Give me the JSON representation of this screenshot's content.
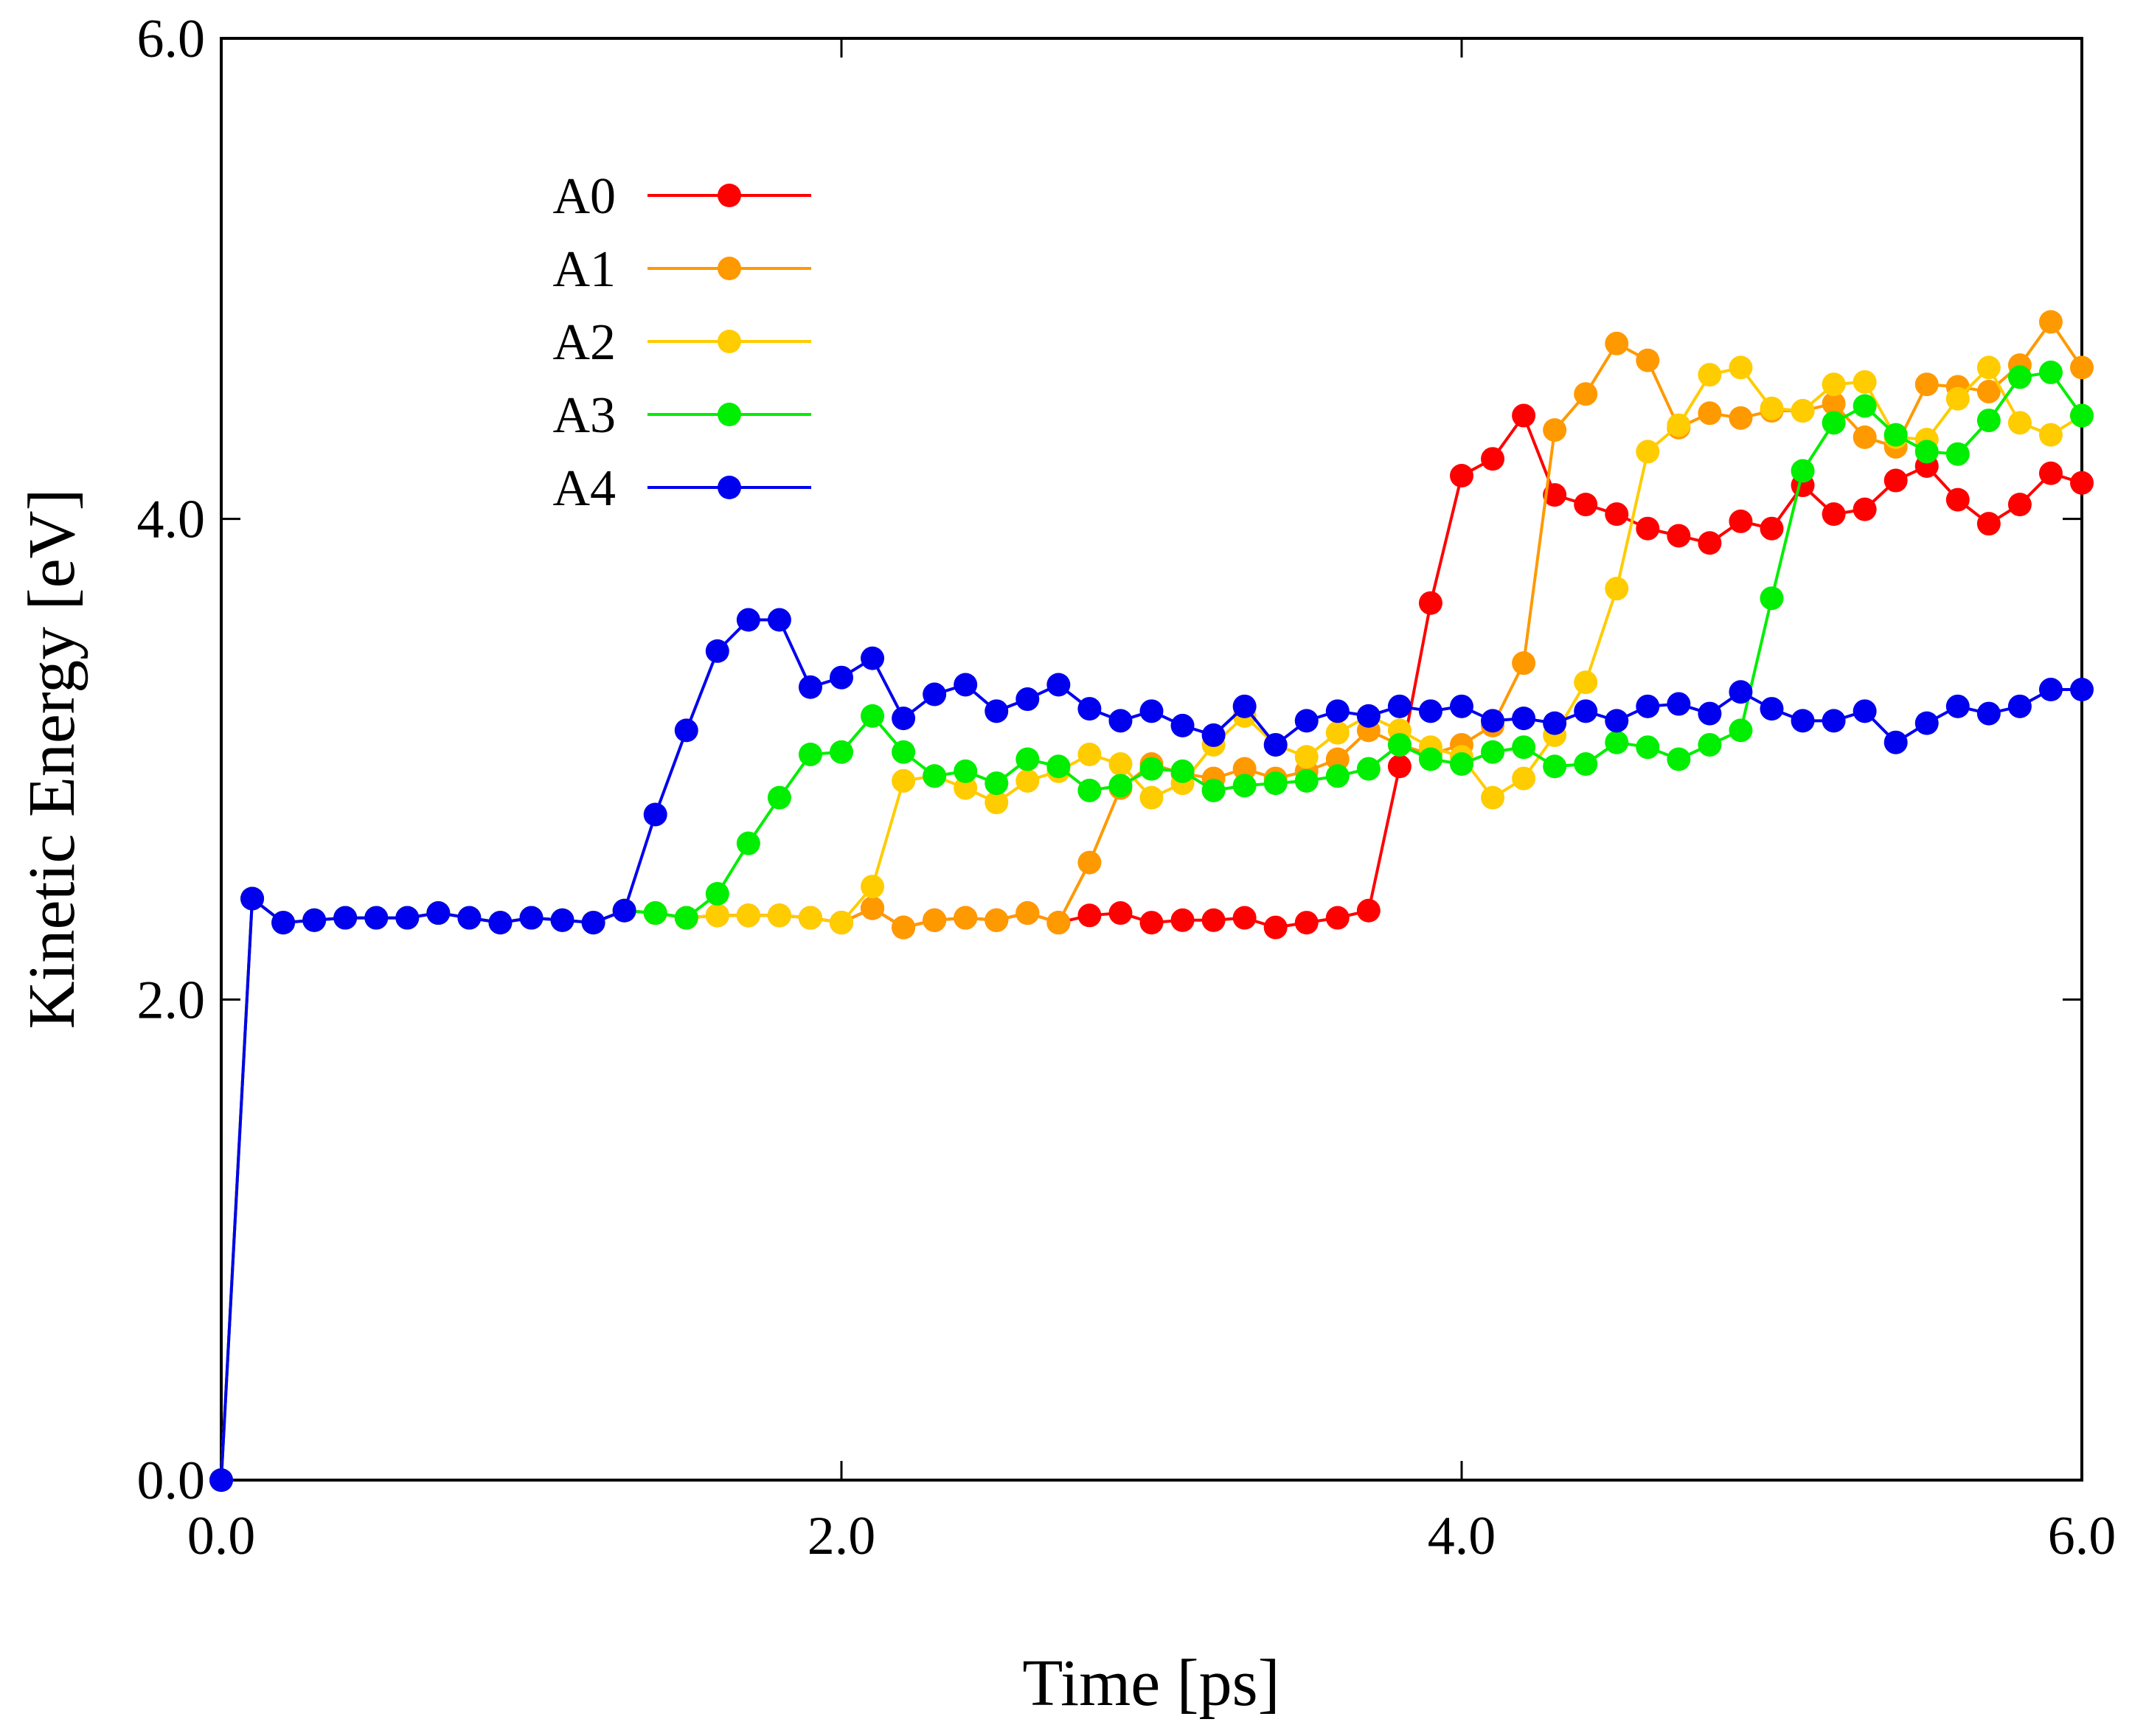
{
  "chart_data": {
    "type": "line",
    "title": "",
    "xlabel": "Time [ps]",
    "ylabel": "Kinetic Energy [eV]",
    "xlim": [
      0,
      6
    ],
    "ylim": [
      0,
      6
    ],
    "xticks": [
      0,
      2,
      4,
      6
    ],
    "yticks": [
      0,
      2,
      4,
      6
    ],
    "xtick_labels": [
      "0.0",
      "2.0",
      "4.0",
      "6.0"
    ],
    "ytick_labels": [
      "0.0",
      "2.0",
      "4.0",
      "6.0"
    ],
    "grid": false,
    "legend_position": "top-left",
    "x": [
      0.0,
      0.1,
      0.2,
      0.3,
      0.4,
      0.5,
      0.6,
      0.7,
      0.8,
      0.9,
      1.0,
      1.1,
      1.2,
      1.3,
      1.4,
      1.5,
      1.6,
      1.7,
      1.8,
      1.9,
      2.0,
      2.1,
      2.2,
      2.3,
      2.4,
      2.5,
      2.6,
      2.7,
      2.8,
      2.9,
      3.0,
      3.1,
      3.2,
      3.3,
      3.4,
      3.5,
      3.6,
      3.7,
      3.8,
      3.9,
      4.0,
      4.1,
      4.2,
      4.3,
      4.4,
      4.5,
      4.6,
      4.7,
      4.8,
      4.9,
      5.0,
      5.1,
      5.2,
      5.3,
      5.4,
      5.5,
      5.6,
      5.7,
      5.8,
      5.9,
      6.0
    ],
    "series": [
      {
        "name": "A0",
        "color": "#ff0000",
        "values": [
          0.0,
          2.42,
          2.32,
          2.33,
          2.34,
          2.34,
          2.34,
          2.36,
          2.34,
          2.32,
          2.34,
          2.33,
          2.32,
          2.37,
          2.36,
          2.34,
          2.35,
          2.35,
          2.35,
          2.34,
          2.32,
          2.38,
          2.3,
          2.33,
          2.34,
          2.33,
          2.36,
          2.32,
          2.35,
          2.36,
          2.32,
          2.33,
          2.33,
          2.34,
          2.3,
          2.32,
          2.34,
          2.37,
          2.97,
          3.65,
          4.18,
          4.25,
          4.43,
          4.1,
          4.06,
          4.02,
          3.96,
          3.93,
          3.9,
          3.99,
          3.96,
          4.14,
          4.02,
          4.04,
          4.16,
          4.22,
          4.08,
          3.98,
          4.06,
          4.19,
          4.15
        ]
      },
      {
        "name": "A1",
        "color": "#ff9900",
        "values": [
          0.0,
          2.42,
          2.32,
          2.33,
          2.34,
          2.34,
          2.34,
          2.36,
          2.34,
          2.32,
          2.34,
          2.33,
          2.32,
          2.37,
          2.36,
          2.34,
          2.35,
          2.35,
          2.35,
          2.34,
          2.32,
          2.38,
          2.3,
          2.33,
          2.34,
          2.33,
          2.36,
          2.32,
          2.57,
          2.88,
          2.98,
          2.94,
          2.92,
          2.96,
          2.92,
          2.95,
          3.0,
          3.12,
          3.06,
          3.02,
          3.06,
          3.14,
          3.4,
          4.37,
          4.52,
          4.73,
          4.66,
          4.38,
          4.44,
          4.42,
          4.45,
          4.45,
          4.48,
          4.34,
          4.3,
          4.56,
          4.55,
          4.53,
          4.64,
          4.82,
          4.63
        ]
      },
      {
        "name": "A2",
        "color": "#ffcc00",
        "values": [
          0.0,
          2.42,
          2.32,
          2.33,
          2.34,
          2.34,
          2.34,
          2.36,
          2.34,
          2.32,
          2.34,
          2.33,
          2.32,
          2.37,
          2.36,
          2.34,
          2.35,
          2.35,
          2.35,
          2.34,
          2.32,
          2.47,
          2.91,
          2.93,
          2.88,
          2.82,
          2.91,
          2.95,
          3.02,
          2.98,
          2.84,
          2.9,
          3.06,
          3.18,
          3.06,
          3.01,
          3.11,
          3.18,
          3.12,
          3.05,
          3.01,
          2.84,
          2.92,
          3.1,
          3.32,
          3.71,
          4.28,
          4.39,
          4.6,
          4.63,
          4.46,
          4.45,
          4.56,
          4.57,
          4.34,
          4.33,
          4.5,
          4.63,
          4.4,
          4.35,
          4.43
        ]
      },
      {
        "name": "A3",
        "color": "#00ee00",
        "values": [
          0.0,
          2.42,
          2.32,
          2.33,
          2.34,
          2.34,
          2.34,
          2.36,
          2.34,
          2.32,
          2.34,
          2.33,
          2.32,
          2.37,
          2.36,
          2.34,
          2.44,
          2.65,
          2.84,
          3.02,
          3.03,
          3.18,
          3.03,
          2.93,
          2.95,
          2.9,
          3.0,
          2.97,
          2.87,
          2.89,
          2.96,
          2.95,
          2.87,
          2.89,
          2.9,
          2.91,
          2.93,
          2.96,
          3.06,
          3.0,
          2.98,
          3.03,
          3.05,
          2.97,
          2.98,
          3.07,
          3.05,
          3.0,
          3.06,
          3.12,
          3.67,
          4.2,
          4.4,
          4.47,
          4.35,
          4.28,
          4.27,
          4.41,
          4.59,
          4.61,
          4.43
        ]
      },
      {
        "name": "A4",
        "color": "#0000ee",
        "values": [
          0.0,
          2.42,
          2.32,
          2.33,
          2.34,
          2.34,
          2.34,
          2.36,
          2.34,
          2.32,
          2.34,
          2.33,
          2.32,
          2.37,
          2.77,
          3.12,
          3.45,
          3.58,
          3.58,
          3.3,
          3.34,
          3.42,
          3.17,
          3.27,
          3.31,
          3.2,
          3.25,
          3.31,
          3.21,
          3.16,
          3.2,
          3.14,
          3.1,
          3.22,
          3.06,
          3.16,
          3.2,
          3.18,
          3.22,
          3.2,
          3.22,
          3.16,
          3.17,
          3.15,
          3.2,
          3.16,
          3.22,
          3.23,
          3.19,
          3.28,
          3.21,
          3.16,
          3.16,
          3.2,
          3.07,
          3.15,
          3.22,
          3.19,
          3.22,
          3.29,
          3.29
        ]
      }
    ]
  }
}
